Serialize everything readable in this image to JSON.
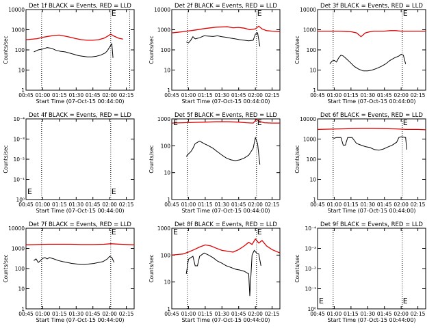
{
  "chart_data": [
    {
      "type": "line",
      "title": "Det 1f BLACK = Events, RED = LLD",
      "xlabel": "Start Time (07-Oct-15 00:44:00)",
      "ylabel": "Counts/sec",
      "x_ticks": [
        "00:45",
        "01:00",
        "01:15",
        "01:30",
        "01:45",
        "02:00",
        "02:15"
      ],
      "y_ticks": [
        "1",
        "10",
        "100",
        "1000",
        "10000"
      ],
      "y_scale": "log",
      "ylim": [
        1,
        10000
      ],
      "xlim_minutes": [
        45,
        142
      ],
      "vlines_minutes": [
        59,
        121,
        138
      ],
      "annotations": [
        "E"
      ],
      "series": [
        {
          "name": "RED",
          "color": "#dd0000",
          "x": [
            45,
            55,
            60,
            65,
            70,
            75,
            80,
            85,
            90,
            95,
            100,
            105,
            110,
            115,
            118,
            121,
            124,
            128,
            132
          ],
          "y": [
            320,
            360,
            420,
            470,
            520,
            540,
            480,
            420,
            360,
            320,
            300,
            300,
            320,
            380,
            470,
            600,
            480,
            380,
            340
          ]
        },
        {
          "name": "BLACK",
          "color": "#000000",
          "x": [
            52,
            56,
            60,
            64,
            68,
            72,
            76,
            80,
            84,
            88,
            92,
            96,
            100,
            104,
            108,
            112,
            116,
            118,
            120,
            122,
            123
          ],
          "y": [
            80,
            100,
            110,
            130,
            120,
            95,
            85,
            80,
            70,
            60,
            52,
            48,
            45,
            45,
            48,
            55,
            70,
            90,
            140,
            200,
            40
          ]
        }
      ]
    },
    {
      "type": "line",
      "title": "Det 2f BLACK = Events, RED = LLD",
      "xlabel": "Start Time (07-Oct-15 00:44:00)",
      "ylabel": "Counts/sec",
      "x_ticks": [
        "00:45",
        "01:00",
        "01:15",
        "01:30",
        "01:45",
        "02:00",
        "02:15"
      ],
      "y_ticks": [
        "1",
        "10",
        "100",
        "1000",
        "10000"
      ],
      "y_scale": "log",
      "ylim": [
        1,
        10000
      ],
      "xlim_minutes": [
        45,
        142
      ],
      "vlines_minutes": [
        59,
        121
      ],
      "annotations": [
        "E"
      ],
      "series": [
        {
          "name": "RED",
          "color": "#dd0000",
          "x": [
            45,
            55,
            65,
            75,
            85,
            95,
            100,
            105,
            110,
            115,
            120,
            123,
            126,
            130,
            135,
            142
          ],
          "y": [
            700,
            800,
            950,
            1150,
            1350,
            1400,
            1250,
            1300,
            1200,
            1000,
            1100,
            1500,
            1100,
            900,
            850,
            800
          ]
        },
        {
          "name": "BLACK",
          "color": "#000000",
          "x": [
            58,
            60,
            62,
            64,
            66,
            70,
            74,
            78,
            82,
            86,
            90,
            94,
            98,
            102,
            106,
            110,
            114,
            118,
            120,
            122,
            124
          ],
          "y": [
            250,
            220,
            300,
            450,
            350,
            400,
            500,
            480,
            460,
            500,
            450,
            420,
            380,
            350,
            320,
            300,
            280,
            300,
            600,
            700,
            150
          ]
        }
      ]
    },
    {
      "type": "line",
      "title": "Det 3f BLACK = Events, RED = LLD",
      "xlabel": "Start Time (07-Oct-15 00:44:00)",
      "ylabel": "Counts/sec",
      "x_ticks": [
        "00:45",
        "01:00",
        "01:15",
        "01:30",
        "01:45",
        "02:00",
        "02:15"
      ],
      "y_ticks": [
        "1",
        "10",
        "100",
        "1000",
        "10000"
      ],
      "y_scale": "log",
      "ylim": [
        1,
        10000
      ],
      "xlim_minutes": [
        45,
        142
      ],
      "vlines_minutes": [
        59,
        121
      ],
      "annotations": [
        "E"
      ],
      "series": [
        {
          "name": "RED",
          "color": "#dd0000",
          "x": [
            45,
            55,
            65,
            75,
            80,
            84,
            88,
            92,
            96,
            100,
            105,
            110,
            115,
            120,
            130,
            142
          ],
          "y": [
            850,
            850,
            850,
            800,
            700,
            450,
            700,
            800,
            850,
            850,
            850,
            900,
            900,
            850,
            850,
            850
          ]
        },
        {
          "name": "BLACK",
          "color": "#000000",
          "x": [
            56,
            58,
            60,
            62,
            64,
            66,
            68,
            70,
            74,
            78,
            82,
            86,
            90,
            94,
            98,
            102,
            106,
            110,
            114,
            118,
            120,
            122,
            124
          ],
          "y": [
            20,
            28,
            30,
            25,
            40,
            55,
            50,
            40,
            25,
            15,
            11,
            9,
            9,
            10,
            12,
            15,
            20,
            30,
            40,
            50,
            60,
            55,
            20
          ]
        }
      ]
    },
    {
      "type": "line",
      "title": "Det 4f BLACK = Events, RED = LLD",
      "xlabel": "Start Time (07-Oct-15 00:44:00)",
      "ylabel": "Counts/sec",
      "x_ticks": [
        "00:45",
        "01:00",
        "01:15",
        "01:30",
        "01:45",
        "02:00",
        "02:15"
      ],
      "y_ticks": [
        "10⁰",
        "10⁻¹",
        "10⁻²",
        "10⁻³",
        "10⁻⁴"
      ],
      "y_scale": "log",
      "xlim_minutes": [
        45,
        142
      ],
      "vlines_minutes": [
        59,
        121
      ],
      "annotations": [
        "E",
        "E"
      ],
      "series": []
    },
    {
      "type": "line",
      "title": "Det 5f BLACK = Events, RED = LLD",
      "xlabel": "Start Time (07-Oct-15 00:44:00)",
      "ylabel": "Counts/sec",
      "x_ticks": [
        "00:45",
        "01:00",
        "01:15",
        "01:30",
        "01:45",
        "02:00",
        "02:15"
      ],
      "y_ticks": [
        "1",
        "10",
        "100",
        "1000"
      ],
      "y_scale": "log",
      "ylim": [
        1,
        1000
      ],
      "xlim_minutes": [
        45,
        142
      ],
      "vlines_minutes": [
        59,
        121
      ],
      "annotations": [
        "E",
        "E"
      ],
      "series": [
        {
          "name": "RED",
          "color": "#dd0000",
          "x": [
            45,
            55,
            65,
            75,
            85,
            95,
            105,
            112,
            118,
            121,
            124,
            128,
            135,
            142
          ],
          "y": [
            700,
            720,
            740,
            760,
            780,
            780,
            760,
            720,
            700,
            950,
            800,
            720,
            700,
            700
          ]
        },
        {
          "name": "BLACK",
          "color": "#000000",
          "x": [
            58,
            60,
            62,
            64,
            66,
            70,
            74,
            78,
            82,
            86,
            90,
            94,
            98,
            102,
            106,
            110,
            114,
            118,
            120,
            122,
            124
          ],
          "y": [
            40,
            50,
            60,
            80,
            120,
            150,
            120,
            100,
            80,
            60,
            45,
            35,
            30,
            28,
            30,
            35,
            45,
            80,
            200,
            120,
            20
          ]
        }
      ]
    },
    {
      "type": "line",
      "title": "Det 6f BLACK = Events, RED = LLD",
      "xlabel": "Start Time (07-Oct-15 00:44:00)",
      "ylabel": "Counts/sec",
      "x_ticks": [
        "00:45",
        "01:00",
        "01:15",
        "01:30",
        "01:45",
        "02:00",
        "02:15"
      ],
      "y_ticks": [
        "1",
        "10",
        "100",
        "1000",
        "10000"
      ],
      "y_scale": "log",
      "ylim": [
        1,
        10000
      ],
      "xlim_minutes": [
        45,
        142
      ],
      "vlines_minutes": [
        59,
        121
      ],
      "annotations": [
        "E"
      ],
      "series": [
        {
          "name": "RED",
          "color": "#dd0000",
          "x": [
            45,
            55,
            65,
            75,
            85,
            95,
            105,
            115,
            125,
            135,
            142
          ],
          "y": [
            3000,
            3100,
            3200,
            3300,
            3400,
            3400,
            3300,
            3200,
            3000,
            3000,
            2900
          ]
        },
        {
          "name": "BLACK",
          "color": "#000000",
          "x": [
            58,
            60,
            62,
            66,
            68,
            70,
            72,
            76,
            80,
            84,
            88,
            92,
            96,
            100,
            104,
            108,
            112,
            116,
            118,
            120,
            124,
            125
          ],
          "y": [
            1200,
            1100,
            1200,
            1200,
            500,
            500,
            1200,
            1200,
            600,
            500,
            420,
            380,
            300,
            280,
            320,
            400,
            500,
            700,
            1200,
            1300,
            1200,
            300
          ]
        }
      ]
    },
    {
      "type": "line",
      "title": "Det 7f BLACK = Events, RED = LLD",
      "xlabel": "Start Time (07-Oct-15 00:44:00)",
      "ylabel": "Counts/sec",
      "x_ticks": [
        "00:45",
        "01:00",
        "01:15",
        "01:30",
        "01:45",
        "02:00",
        "02:15"
      ],
      "y_ticks": [
        "1",
        "10",
        "100",
        "1000",
        "10000"
      ],
      "y_scale": "log",
      "ylim": [
        1,
        10000
      ],
      "xlim_minutes": [
        45,
        142
      ],
      "vlines_minutes": [
        59,
        121
      ],
      "annotations": [
        "E"
      ],
      "series": [
        {
          "name": "RED",
          "color": "#dd0000",
          "x": [
            45,
            55,
            65,
            75,
            85,
            95,
            105,
            115,
            121,
            130,
            142
          ],
          "y": [
            1500,
            1550,
            1600,
            1600,
            1600,
            1550,
            1550,
            1600,
            1700,
            1600,
            1500
          ]
        },
        {
          "name": "BLACK",
          "color": "#000000",
          "x": [
            52,
            54,
            56,
            58,
            60,
            62,
            64,
            66,
            70,
            74,
            78,
            82,
            86,
            90,
            94,
            98,
            102,
            106,
            110,
            114,
            118,
            120,
            122,
            124
          ],
          "y": [
            250,
            300,
            200,
            250,
            320,
            350,
            300,
            350,
            300,
            250,
            220,
            200,
            180,
            170,
            160,
            160,
            170,
            180,
            200,
            220,
            300,
            400,
            350,
            200
          ]
        }
      ]
    },
    {
      "type": "line",
      "title": "Det 8f BLACK = Events, RED = LLD",
      "xlabel": "Start Time (07-Oct-15 00:44:00)",
      "ylabel": "Counts/sec",
      "x_ticks": [
        "00:45",
        "01:00",
        "01:15",
        "01:30",
        "01:45",
        "02:00",
        "02:15"
      ],
      "y_ticks": [
        "1",
        "10",
        "100",
        "1000"
      ],
      "y_scale": "log",
      "ylim": [
        1,
        1000
      ],
      "xlim_minutes": [
        45,
        142
      ],
      "vlines_minutes": [
        59,
        121
      ],
      "annotations": [
        "E",
        "E"
      ],
      "series": [
        {
          "name": "RED",
          "color": "#dd0000",
          "x": [
            45,
            50,
            55,
            60,
            65,
            70,
            75,
            80,
            85,
            90,
            95,
            100,
            105,
            110,
            114,
            117,
            120,
            123,
            126,
            130,
            135,
            142
          ],
          "y": [
            100,
            105,
            110,
            130,
            160,
            200,
            240,
            220,
            180,
            150,
            140,
            130,
            160,
            220,
            300,
            250,
            400,
            280,
            350,
            220,
            160,
            120
          ]
        },
        {
          "name": "BLACK",
          "color": "#000000",
          "x": [
            58,
            60,
            62,
            64,
            66,
            68,
            70,
            74,
            78,
            82,
            86,
            90,
            94,
            98,
            102,
            106,
            110,
            114,
            115,
            117,
            119,
            121,
            123,
            125
          ],
          "y": [
            20,
            70,
            80,
            90,
            40,
            40,
            90,
            120,
            100,
            80,
            60,
            50,
            40,
            35,
            30,
            28,
            25,
            20,
            3,
            100,
            150,
            120,
            110,
            40
          ]
        }
      ]
    },
    {
      "type": "line",
      "title": "Det 9f BLACK = Events, RED = LLD",
      "xlabel": "Start Time (07-Oct-15 00:44:00)",
      "ylabel": "Counts/sec",
      "x_ticks": [
        "00:45",
        "01:00",
        "01:15",
        "01:30",
        "01:45",
        "02:00",
        "02:15"
      ],
      "y_ticks": [
        "10⁰",
        "10⁻¹",
        "10⁻²",
        "10⁻³",
        "10⁻⁴"
      ],
      "y_scale": "log",
      "xlim_minutes": [
        45,
        142
      ],
      "vlines_minutes": [
        59,
        121
      ],
      "annotations": [
        "E",
        "E"
      ],
      "series": []
    }
  ]
}
